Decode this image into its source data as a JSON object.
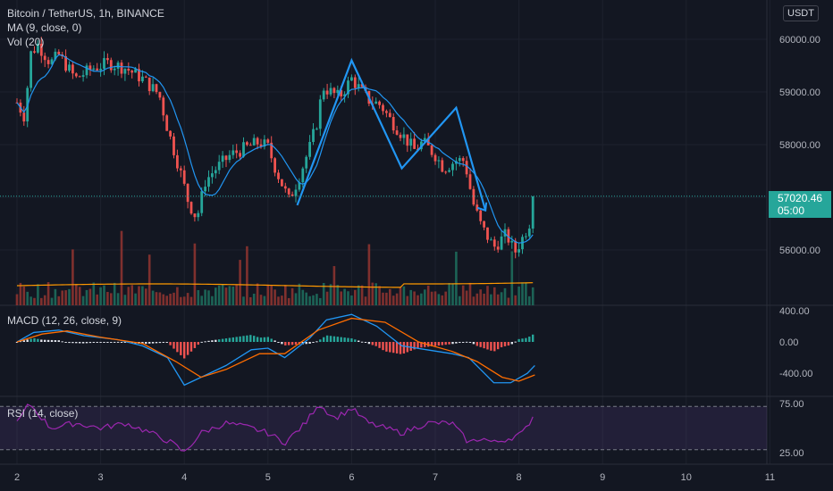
{
  "header": {
    "symbol_line": "Bitcoin / TetherUS, 1h, BINANCE",
    "ma_line": "MA (9, close, 0)",
    "vol_line": "Vol (20)",
    "currency": "USDT",
    "macd_line": "MACD (12, 26, close, 9)",
    "rsi_line": "RSI (14, close)"
  },
  "price_badge": {
    "price": "57020.46",
    "countdown": "05:00"
  },
  "colors": {
    "bg": "#131722",
    "up": "#26a69a",
    "down": "#ef5350",
    "ma": "#2196f3",
    "vol_ma": "#ff9800",
    "pattern": "#2196f3",
    "rsi": "#9c27b0",
    "grid": "#1e222d"
  },
  "chart_data": [
    {
      "type": "candlestick",
      "title": "Bitcoin / TetherUS, 1h, BINANCE",
      "x_ticks": [
        "2",
        "3",
        "4",
        "5",
        "6",
        "7",
        "8",
        "9",
        "10",
        "11"
      ],
      "y_ticks": [
        "60000.00",
        "59000.00",
        "58000.00",
        "57000.00",
        "56000.00"
      ],
      "ylim": [
        54900,
        60600
      ],
      "last_price": 57020.46,
      "price_path": [
        [
          2.0,
          58800
        ],
        [
          2.1,
          58500
        ],
        [
          2.15,
          59700
        ],
        [
          2.25,
          59900
        ],
        [
          2.4,
          59550
        ],
        [
          2.5,
          59700
        ],
        [
          2.7,
          59250
        ],
        [
          2.9,
          59450
        ],
        [
          3.1,
          59550
        ],
        [
          3.3,
          59450
        ],
        [
          3.5,
          59250
        ],
        [
          3.7,
          58950
        ],
        [
          3.8,
          58300
        ],
        [
          3.95,
          57500
        ],
        [
          4.05,
          56900
        ],
        [
          4.15,
          56600
        ],
        [
          4.25,
          57300
        ],
        [
          4.35,
          57500
        ],
        [
          4.55,
          57800
        ],
        [
          4.75,
          57950
        ],
        [
          4.9,
          58050
        ],
        [
          5.0,
          57950
        ],
        [
          5.1,
          57500
        ],
        [
          5.25,
          56950
        ],
        [
          5.35,
          57300
        ],
        [
          5.5,
          57950
        ],
        [
          5.6,
          58500
        ],
        [
          5.65,
          59100
        ],
        [
          5.85,
          58900
        ],
        [
          6.0,
          59250
        ],
        [
          6.1,
          59050
        ],
        [
          6.2,
          58850
        ],
        [
          6.35,
          58750
        ],
        [
          6.45,
          58500
        ],
        [
          6.6,
          58200
        ],
        [
          6.75,
          57900
        ],
        [
          6.85,
          58050
        ],
        [
          7.0,
          57800
        ],
        [
          7.1,
          57550
        ],
        [
          7.25,
          57700
        ],
        [
          7.35,
          57700
        ],
        [
          7.45,
          56900
        ],
        [
          7.55,
          56450
        ],
        [
          7.7,
          56050
        ],
        [
          7.85,
          56300
        ],
        [
          7.95,
          55950
        ],
        [
          8.05,
          56250
        ],
        [
          8.15,
          56600
        ],
        [
          8.19,
          57020
        ]
      ],
      "pattern_lines": [
        [
          [
            5.35,
            56850
          ],
          [
            6.0,
            59600
          ],
          [
            6.6,
            57550
          ],
          [
            7.25,
            58700
          ],
          [
            7.6,
            56750
          ]
        ]
      ]
    },
    {
      "type": "bar",
      "title": "Vol (20)",
      "note": "volume bars with 20-period moving average"
    },
    {
      "type": "line",
      "title": "MACD (12, 26, close, 9)",
      "y_ticks": [
        "400.00",
        "0.00",
        "-400.00"
      ],
      "ylim": [
        -650,
        450
      ],
      "series": [
        {
          "values": [
            [
              2,
              0
            ],
            [
              2.2,
              120
            ],
            [
              2.5,
              150
            ],
            [
              2.8,
              80
            ],
            [
              3.2,
              30
            ],
            [
              3.5,
              -50
            ],
            [
              3.8,
              -200
            ],
            [
              4.0,
              -550
            ],
            [
              4.2,
              -450
            ],
            [
              4.5,
              -300
            ],
            [
              4.8,
              -100
            ],
            [
              5.0,
              -80
            ],
            [
              5.2,
              -200
            ],
            [
              5.5,
              50
            ],
            [
              5.7,
              280
            ],
            [
              6.0,
              350
            ],
            [
              6.3,
              200
            ],
            [
              6.6,
              -50
            ],
            [
              6.9,
              -100
            ],
            [
              7.2,
              -150
            ],
            [
              7.4,
              -200
            ],
            [
              7.7,
              -520
            ],
            [
              7.9,
              -520
            ],
            [
              8.1,
              -400
            ],
            [
              8.19,
              -300
            ]
          ]
        },
        {
          "values": [
            [
              2,
              0
            ],
            [
              2.3,
              100
            ],
            [
              2.6,
              140
            ],
            [
              3.0,
              60
            ],
            [
              3.5,
              -20
            ],
            [
              3.9,
              -250
            ],
            [
              4.2,
              -450
            ],
            [
              4.5,
              -350
            ],
            [
              4.9,
              -150
            ],
            [
              5.2,
              -150
            ],
            [
              5.6,
              150
            ],
            [
              6.0,
              300
            ],
            [
              6.4,
              250
            ],
            [
              6.8,
              0
            ],
            [
              7.2,
              -120
            ],
            [
              7.5,
              -250
            ],
            [
              7.8,
              -450
            ],
            [
              8.0,
              -500
            ],
            [
              8.19,
              -420
            ]
          ]
        }
      ]
    },
    {
      "type": "line",
      "title": "RSI (14, close)",
      "y_ticks": [
        "75.00",
        "25.00"
      ],
      "ylim": [
        20,
        80
      ],
      "bands": [
        30,
        70
      ],
      "series": [
        {
          "values": [
            [
              2,
              55
            ],
            [
              2.15,
              75
            ],
            [
              2.4,
              50
            ],
            [
              2.7,
              55
            ],
            [
              3.0,
              50
            ],
            [
              3.3,
              55
            ],
            [
              3.6,
              45
            ],
            [
              3.85,
              35
            ],
            [
              4.0,
              25
            ],
            [
              4.2,
              45
            ],
            [
              4.5,
              55
            ],
            [
              4.8,
              50
            ],
            [
              5.0,
              45
            ],
            [
              5.2,
              35
            ],
            [
              5.45,
              55
            ],
            [
              5.6,
              75
            ],
            [
              5.8,
              60
            ],
            [
              6.0,
              70
            ],
            [
              6.2,
              55
            ],
            [
              6.4,
              50
            ],
            [
              6.6,
              45
            ],
            [
              6.9,
              55
            ],
            [
              7.2,
              55
            ],
            [
              7.4,
              35
            ],
            [
              7.55,
              40
            ],
            [
              7.7,
              35
            ],
            [
              7.9,
              40
            ],
            [
              8.05,
              45
            ],
            [
              8.19,
              65
            ]
          ]
        }
      ]
    }
  ]
}
